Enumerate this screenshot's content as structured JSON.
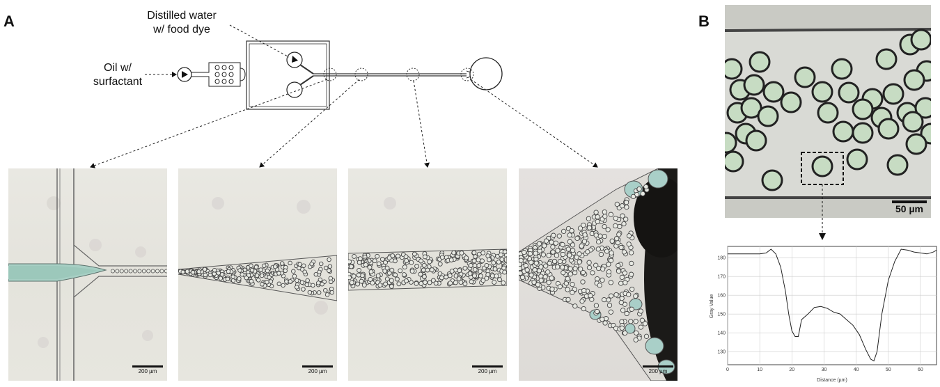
{
  "panels": {
    "a_label": "A",
    "b_label": "B"
  },
  "schematic": {
    "water_label_line1": "Distilled water",
    "water_label_line2": "w/ food dye",
    "oil_label_line1": "Oil w/",
    "oil_label_line2": "surfactant"
  },
  "micrographs": [
    {
      "scale_label": "200 µm"
    },
    {
      "scale_label": "200 µm"
    },
    {
      "scale_label": "200 µm"
    },
    {
      "scale_label": "200 µm"
    }
  ],
  "panel_b": {
    "scale_label": "50 µm"
  },
  "chart_data": {
    "type": "line",
    "title": "",
    "xlabel": "Distance (µm)",
    "ylabel": "Gray Value",
    "xlim": [
      0,
      65
    ],
    "ylim": [
      123,
      186
    ],
    "x_ticks": [
      0,
      10,
      20,
      30,
      40,
      50,
      60
    ],
    "y_ticks": [
      130,
      140,
      150,
      160,
      170,
      180
    ],
    "grid": true,
    "series": [
      {
        "x": [
          0,
          2,
          6,
          10,
          12,
          13.5,
          15,
          16.5,
          18,
          19,
          20,
          21,
          22,
          23,
          25,
          27,
          29,
          31,
          33,
          35,
          37,
          39,
          41,
          43,
          44.5,
          45.5,
          46.5,
          48,
          50,
          52,
          54,
          56,
          58,
          60,
          62,
          64,
          65
        ],
        "y": [
          182,
          182,
          182,
          182,
          182.5,
          184.5,
          182,
          175,
          162,
          150,
          141,
          138,
          138,
          147,
          150,
          153.5,
          154,
          153,
          151,
          150,
          147,
          144,
          139,
          131,
          126,
          125,
          130,
          150,
          168,
          178,
          184.5,
          184,
          183,
          182.5,
          182,
          183,
          184
        ]
      }
    ]
  }
}
